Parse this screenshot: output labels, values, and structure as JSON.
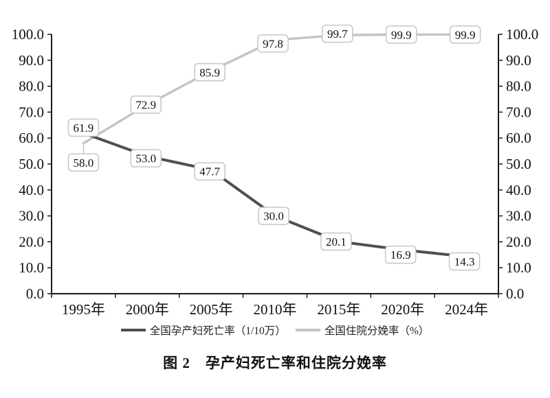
{
  "caption": "图 2　孕产妇死亡率和住院分娩率",
  "chart_data": {
    "type": "line",
    "title": "图 2　孕产妇死亡率和住院分娩率",
    "categories": [
      "1995年",
      "2000年",
      "2005年",
      "2010年",
      "2015年",
      "2020年",
      "2024年"
    ],
    "series": [
      {
        "id": "maternal-mortality-rate",
        "name": "全国孕产妇死亡率（1/10万）",
        "color": "#4f4f4f",
        "line_width": 4,
        "values": [
          61.9,
          53.0,
          47.7,
          30.0,
          20.1,
          16.9,
          14.3
        ],
        "label_offsets": [
          [
            0,
            -8
          ],
          [
            -2,
            3
          ],
          [
            -2,
            2
          ],
          [
            -2,
            0
          ],
          [
            -4,
            0
          ],
          [
            -3,
            7
          ],
          [
            -3,
            7
          ]
        ],
        "leader_points": []
      },
      {
        "id": "hospital-delivery-rate",
        "name": "全国住院分娩率（%）",
        "color": "#c4c4c4",
        "line_width": 3.5,
        "values": [
          58.0,
          72.9,
          85.9,
          97.8,
          99.7,
          99.9,
          99.9
        ],
        "label_offsets": [
          [
            0,
            28
          ],
          [
            -2,
            0
          ],
          [
            -2,
            2
          ],
          [
            -3,
            5
          ],
          [
            -2,
            -2
          ],
          [
            -2,
            0
          ],
          [
            -2,
            0
          ]
        ],
        "leader_points": [
          0
        ]
      }
    ],
    "ylim": [
      0,
      100
    ],
    "yticks": [
      0,
      10,
      20,
      30,
      40,
      50,
      60,
      70,
      80,
      90,
      100
    ],
    "ytick_format_decimals": 1,
    "axes": {
      "left": true,
      "right": true,
      "bottom": true,
      "top": false
    },
    "grid": false,
    "data_labels": "boxed",
    "legend_position": "bottom",
    "xlabel": "",
    "ylabel": ""
  }
}
